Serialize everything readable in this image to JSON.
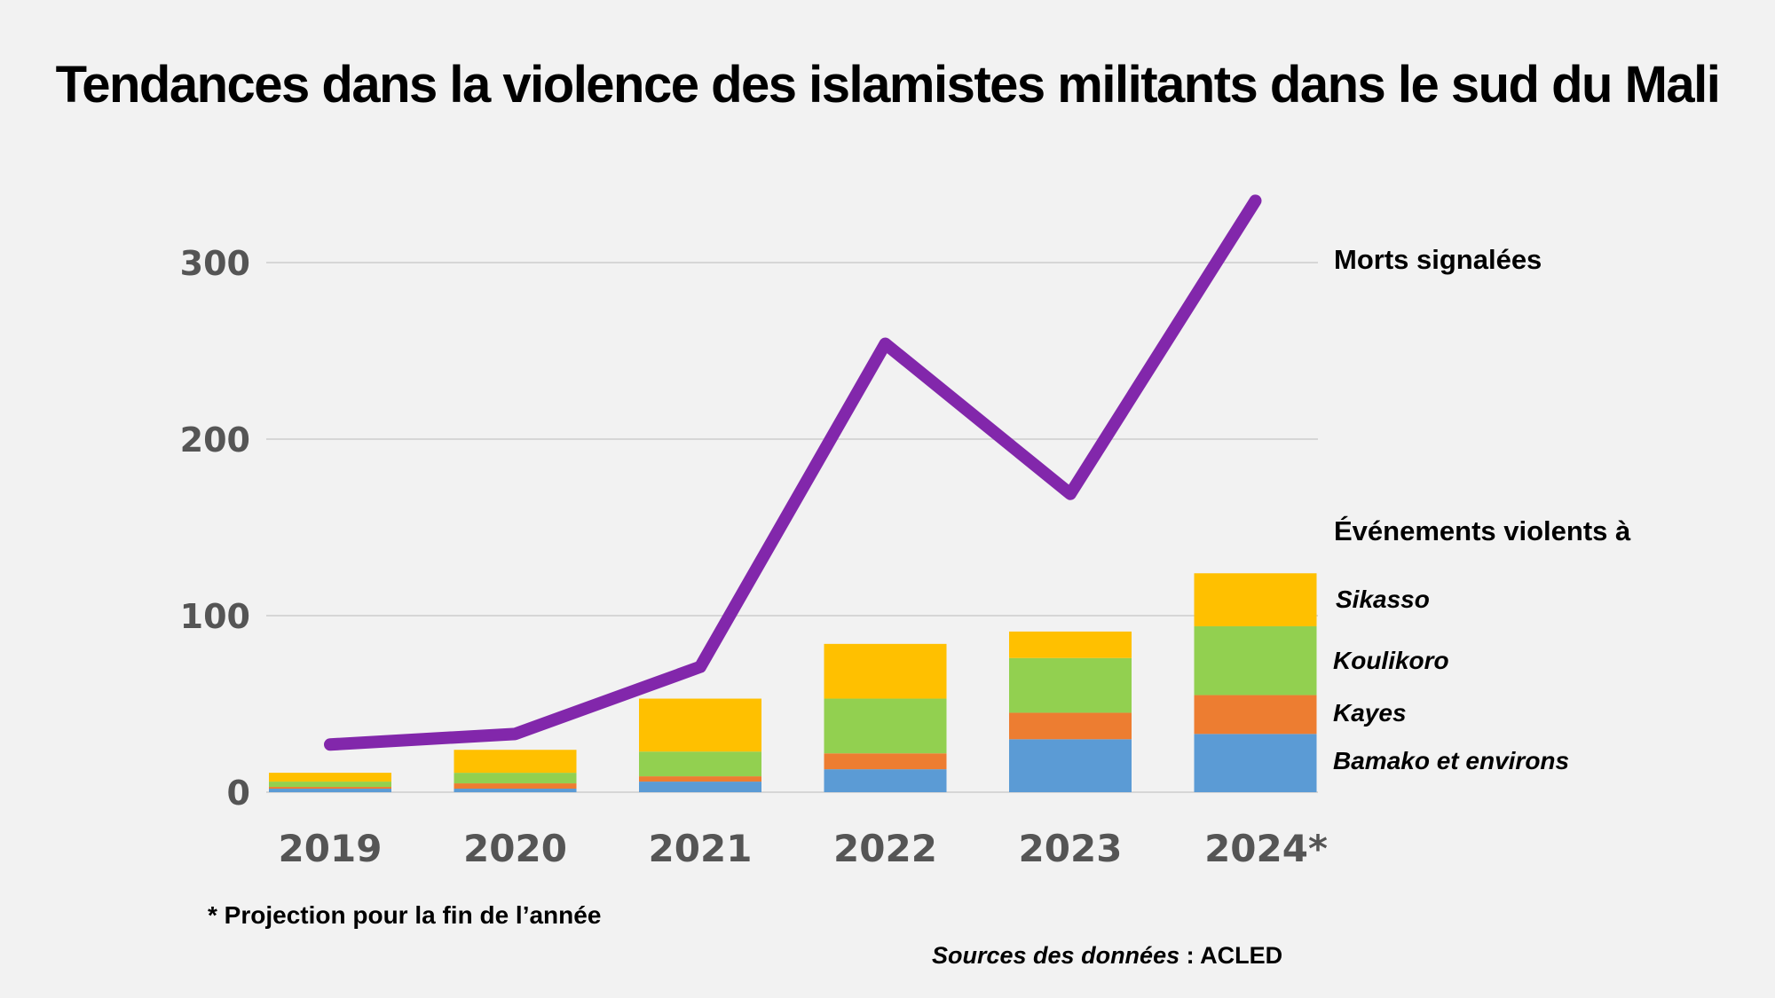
{
  "title": "Tendances dans la violence des islamistes militants dans le sud du Mali",
  "footnote": "* Projection pour la fin de l’année",
  "source": {
    "label": "Sources des données",
    "separator": " : ",
    "value": "ACLED"
  },
  "colors": {
    "line": "#8227ab",
    "Bamako et environs": "#5b9bd5",
    "Kayes": "#ed7d31",
    "Koulikoro": "#92d050",
    "Sikasso": "#ffc000",
    "grid": "#d6d6d6"
  },
  "chart_data": {
    "type": "bar",
    "categories": [
      "2019",
      "2020",
      "2021",
      "2022",
      "2023",
      "2024*"
    ],
    "ylim": [
      0,
      340
    ],
    "yticks": [
      0,
      100,
      200,
      300
    ],
    "grid": true,
    "stacked_series_title": "Événements violents à",
    "series": [
      {
        "name": "Bamako et environs",
        "values": [
          2,
          2,
          6,
          13,
          30,
          33
        ]
      },
      {
        "name": "Kayes",
        "values": [
          1,
          3,
          3,
          9,
          15,
          22
        ]
      },
      {
        "name": "Koulikoro",
        "values": [
          3,
          6,
          14,
          31,
          31,
          39
        ]
      },
      {
        "name": "Sikasso",
        "values": [
          5,
          13,
          30,
          31,
          15,
          30
        ]
      }
    ],
    "line_series": {
      "name": "Morts signalées",
      "type": "line",
      "values": [
        27,
        33,
        71,
        254,
        169,
        335
      ]
    }
  }
}
